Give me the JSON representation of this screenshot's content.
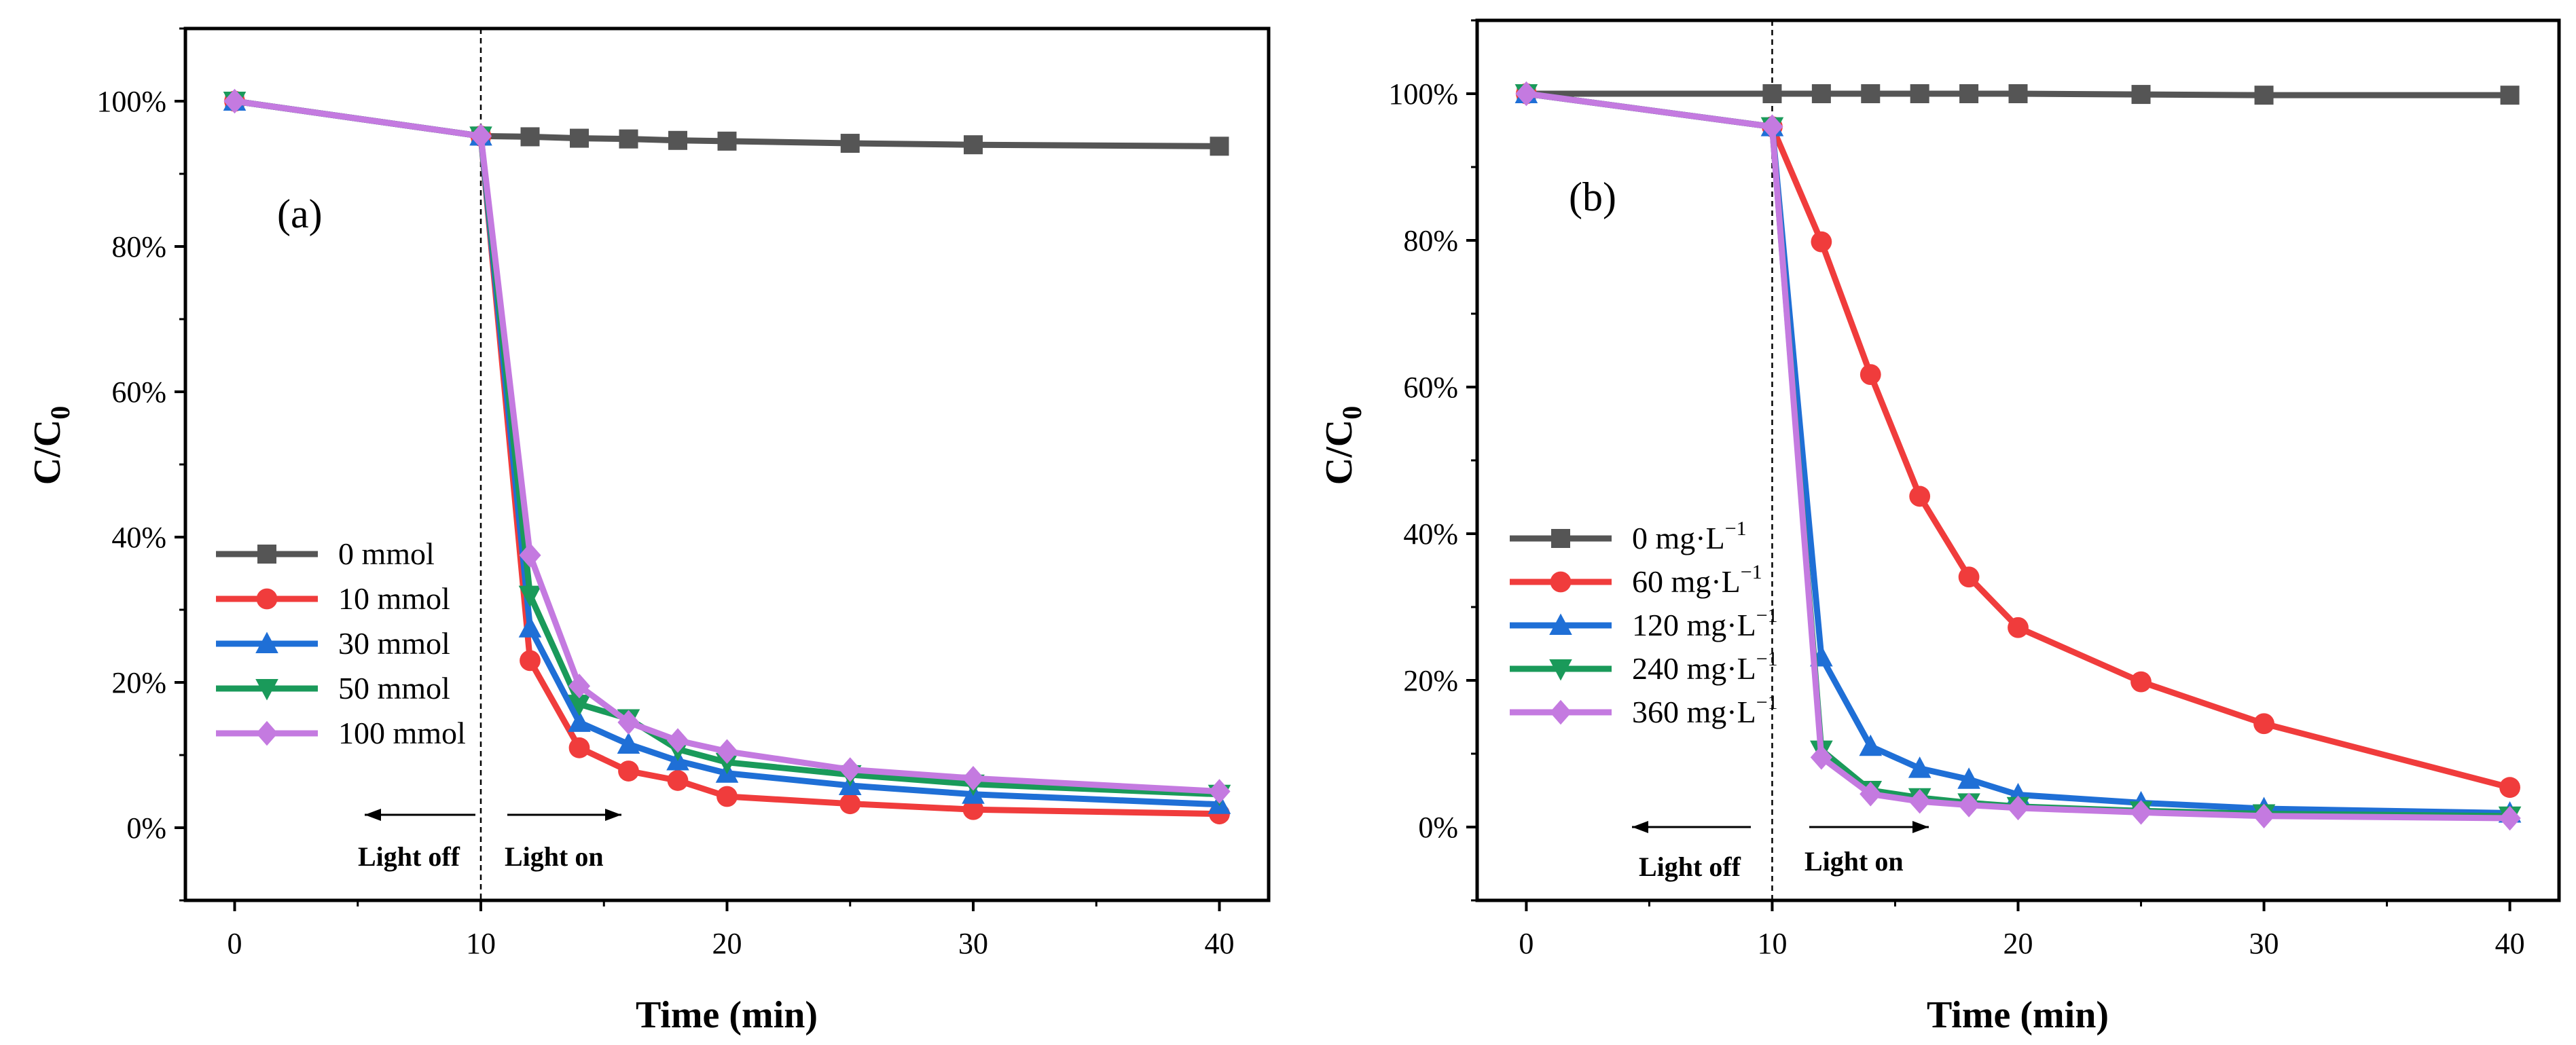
{
  "chart_data": [
    {
      "type": "line",
      "panel_label": "(a)",
      "xlabel": "Time (min)",
      "ylabel_main": "C/C",
      "ylabel_sub": "0",
      "xlim": [
        -2,
        42
      ],
      "ylim": [
        -10,
        110
      ],
      "x_ticks": [
        0,
        10,
        20,
        30,
        40
      ],
      "x_tick_labels": [
        "0",
        "10",
        "20",
        "30",
        "40"
      ],
      "y_ticks": [
        0,
        20,
        40,
        60,
        80,
        100
      ],
      "y_tick_labels": [
        "0%",
        "20%",
        "40%",
        "60%",
        "80%",
        "100%"
      ],
      "divider_x": 10,
      "annotations": {
        "light_off": "Light off",
        "light_on": "Light on"
      },
      "x": [
        0,
        10,
        12,
        14,
        16,
        18,
        20,
        25,
        30,
        40
      ],
      "series": [
        {
          "name": "0 mmol",
          "color": "#555555",
          "marker": "square",
          "values": [
            100,
            95.2,
            95.1,
            94.9,
            94.8,
            94.6,
            94.5,
            94.2,
            94.0,
            93.8
          ]
        },
        {
          "name": "10 mmol",
          "color": "#f03c3c",
          "marker": "circle",
          "values": [
            100,
            95.2,
            23.0,
            11.0,
            7.8,
            6.5,
            4.3,
            3.3,
            2.5,
            1.9
          ]
        },
        {
          "name": "30 mmol",
          "color": "#1f6fd6",
          "marker": "triangle-up",
          "values": [
            100,
            95.2,
            27.5,
            14.5,
            11.5,
            9.2,
            7.5,
            5.8,
            4.6,
            3.2
          ]
        },
        {
          "name": "50 mmol",
          "color": "#1a9a5a",
          "marker": "triangle-down",
          "values": [
            100,
            95.2,
            32.0,
            17.0,
            15.0,
            10.8,
            9.0,
            7.3,
            6.0,
            4.6
          ]
        },
        {
          "name": "100 mmol",
          "color": "#c47ae0",
          "marker": "diamond",
          "values": [
            100,
            95.2,
            37.5,
            19.5,
            14.5,
            12.0,
            10.5,
            8.0,
            6.8,
            5.0
          ]
        }
      ]
    },
    {
      "type": "line",
      "panel_label": "(b)",
      "xlabel": "Time (min)",
      "ylabel_main": "C/C",
      "ylabel_sub": "0",
      "xlim": [
        -2,
        42
      ],
      "ylim": [
        -10,
        110
      ],
      "x_ticks": [
        0,
        10,
        20,
        30,
        40
      ],
      "x_tick_labels": [
        "0",
        "10",
        "20",
        "30",
        "40"
      ],
      "y_ticks": [
        0,
        20,
        40,
        60,
        80,
        100
      ],
      "y_tick_labels": [
        "0%",
        "20%",
        "40%",
        "60%",
        "80%",
        "100%"
      ],
      "divider_x": 10,
      "annotations": {
        "light_off": "Light off",
        "light_on": "Light on"
      },
      "x": [
        0,
        10,
        12,
        14,
        16,
        18,
        20,
        25,
        30,
        40
      ],
      "series": [
        {
          "name": "0 mg·L",
          "sup": "−1",
          "color": "#555555",
          "marker": "square",
          "values": [
            100,
            100,
            100,
            100,
            100,
            100,
            100,
            99.9,
            99.8,
            99.8
          ]
        },
        {
          "name": "60 mg·L",
          "sup": "−1",
          "color": "#f03c3c",
          "marker": "circle",
          "values": [
            100,
            95.5,
            79.8,
            61.7,
            45.1,
            34.1,
            27.2,
            19.8,
            14.1,
            5.4
          ]
        },
        {
          "name": "120 mg·L",
          "sup": "−1",
          "color": "#1f6fd6",
          "marker": "triangle-up",
          "values": [
            100,
            95.5,
            23.2,
            11.0,
            8.0,
            6.5,
            4.4,
            3.3,
            2.5,
            1.9
          ]
        },
        {
          "name": "240 mg·L",
          "sup": "−1",
          "color": "#1a9a5a",
          "marker": "triangle-down",
          "values": [
            100,
            95.5,
            10.5,
            5.0,
            4.0,
            3.3,
            2.8,
            2.2,
            1.8,
            1.5
          ]
        },
        {
          "name": "360 mg·L",
          "sup": "−1",
          "color": "#c47ae0",
          "marker": "diamond",
          "values": [
            100,
            95.5,
            9.5,
            4.5,
            3.5,
            3.0,
            2.6,
            2.0,
            1.5,
            1.2
          ]
        }
      ]
    }
  ]
}
